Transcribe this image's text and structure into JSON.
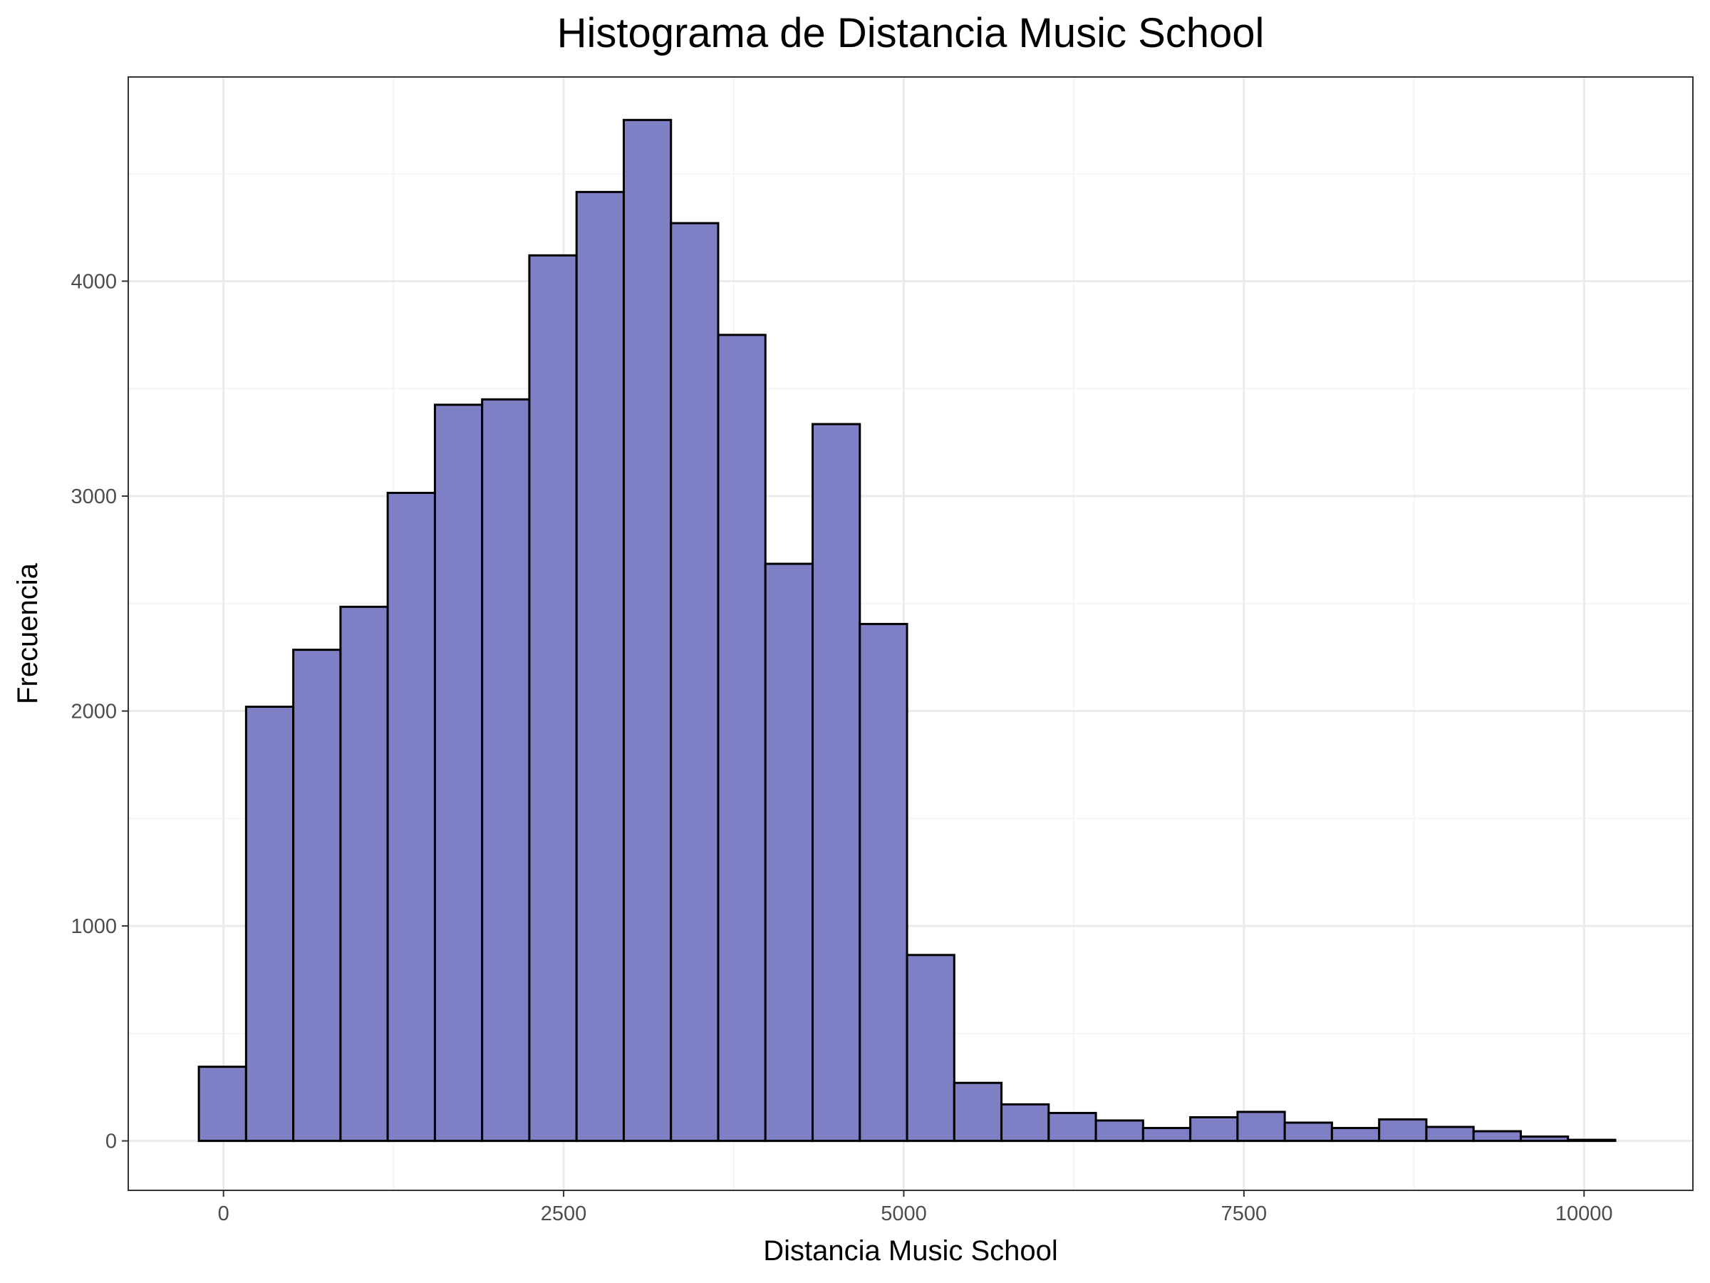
{
  "chart_data": {
    "type": "bar",
    "title": "Histograma de Distancia Music School",
    "xlabel": "Distancia Music School",
    "ylabel": "Frecuencia",
    "bin_width": 347,
    "bins": [
      {
        "x0": -181,
        "x1": 166,
        "count": 345
      },
      {
        "x0": 166,
        "x1": 513,
        "count": 2020
      },
      {
        "x0": 513,
        "x1": 860,
        "count": 2285
      },
      {
        "x0": 860,
        "x1": 1207,
        "count": 2485
      },
      {
        "x0": 1207,
        "x1": 1554,
        "count": 3015
      },
      {
        "x0": 1554,
        "x1": 1901,
        "count": 3425
      },
      {
        "x0": 1901,
        "x1": 2248,
        "count": 3450
      },
      {
        "x0": 2248,
        "x1": 2595,
        "count": 4120
      },
      {
        "x0": 2595,
        "x1": 2942,
        "count": 4415
      },
      {
        "x0": 2942,
        "x1": 3289,
        "count": 4750
      },
      {
        "x0": 3289,
        "x1": 3636,
        "count": 4270
      },
      {
        "x0": 3636,
        "x1": 3983,
        "count": 3750
      },
      {
        "x0": 3983,
        "x1": 4330,
        "count": 2685
      },
      {
        "x0": 4330,
        "x1": 4677,
        "count": 3335
      },
      {
        "x0": 4677,
        "x1": 5024,
        "count": 2405
      },
      {
        "x0": 5024,
        "x1": 5371,
        "count": 865
      },
      {
        "x0": 5371,
        "x1": 5718,
        "count": 270
      },
      {
        "x0": 5718,
        "x1": 6065,
        "count": 170
      },
      {
        "x0": 6065,
        "x1": 6412,
        "count": 130
      },
      {
        "x0": 6412,
        "x1": 6759,
        "count": 95
      },
      {
        "x0": 6759,
        "x1": 7106,
        "count": 60
      },
      {
        "x0": 7106,
        "x1": 7453,
        "count": 110
      },
      {
        "x0": 7453,
        "x1": 7800,
        "count": 135
      },
      {
        "x0": 7800,
        "x1": 8147,
        "count": 85
      },
      {
        "x0": 8147,
        "x1": 8494,
        "count": 60
      },
      {
        "x0": 8494,
        "x1": 8841,
        "count": 100
      },
      {
        "x0": 8841,
        "x1": 9188,
        "count": 65
      },
      {
        "x0": 9188,
        "x1": 9535,
        "count": 45
      },
      {
        "x0": 9535,
        "x1": 9882,
        "count": 20
      },
      {
        "x0": 9882,
        "x1": 10229,
        "count": 5
      }
    ],
    "xlim": [
      -700,
      10800
    ],
    "ylim": [
      -230,
      4950
    ],
    "x_ticks": [
      0,
      2500,
      5000,
      7500,
      10000
    ],
    "x_tick_labels": [
      "0",
      "2500",
      "5000",
      "7500",
      "10000"
    ],
    "y_ticks": [
      0,
      1000,
      2000,
      3000,
      4000
    ],
    "y_tick_labels": [
      "0",
      "1000",
      "2000",
      "3000",
      "4000"
    ],
    "x_minor_ticks": [
      1250,
      3750,
      6250,
      8750
    ],
    "y_minor_ticks": [
      500,
      1500,
      2500,
      3500,
      4500
    ],
    "grid": true,
    "legend": "none",
    "colors": {
      "bar_fill": "#7f7fc5",
      "bar_stroke": "#000000",
      "grid_major": "#ebebeb",
      "grid_minor": "#f5f5f5",
      "panel_border": "#333333"
    }
  }
}
